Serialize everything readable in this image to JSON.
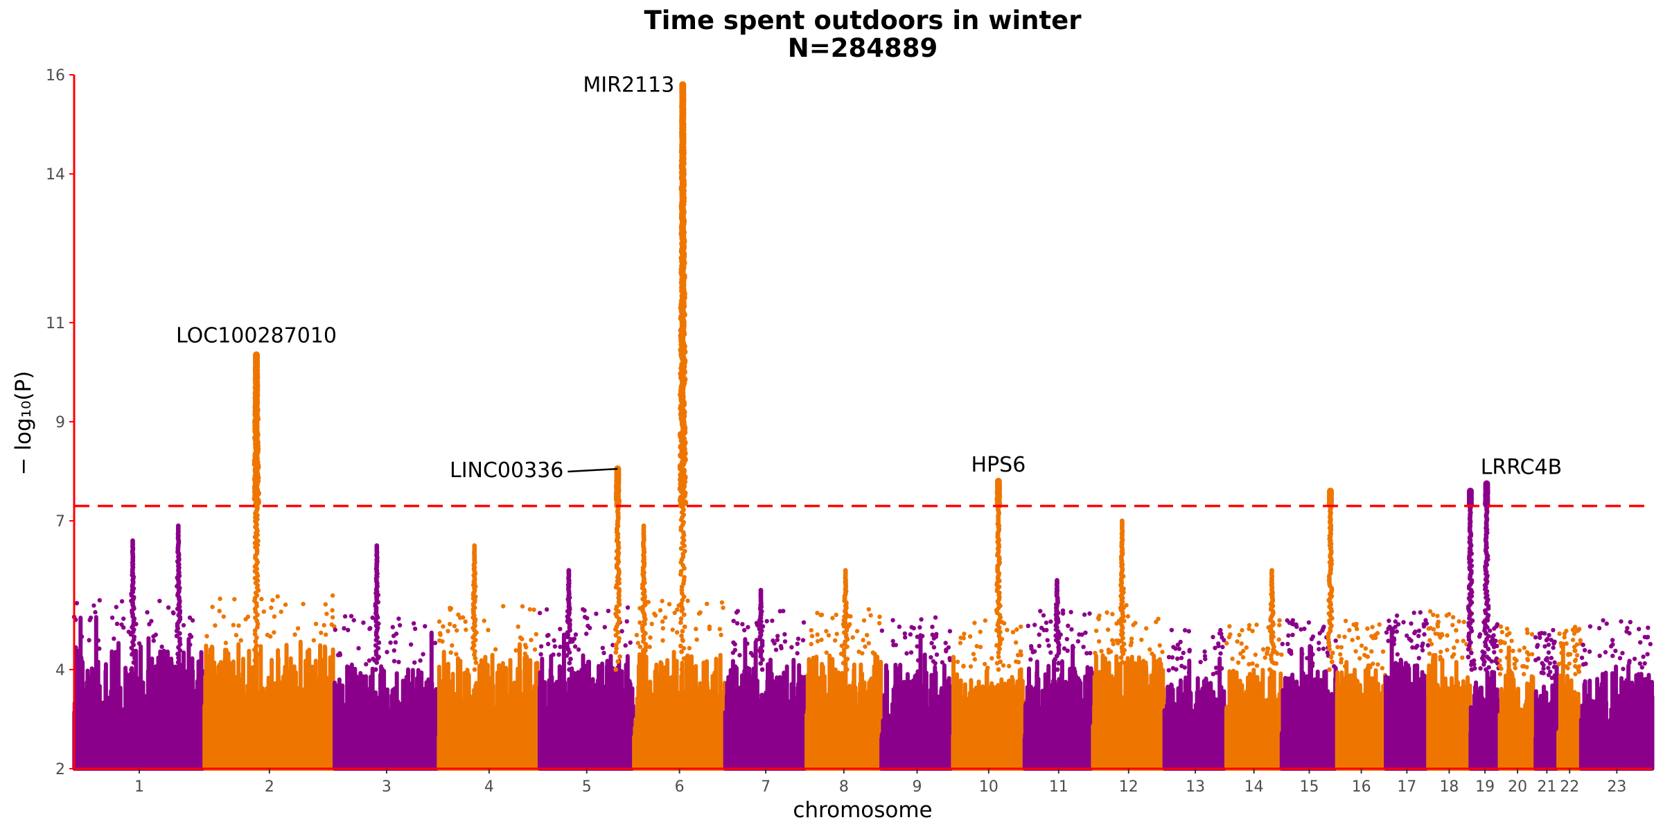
{
  "chart_data": {
    "type": "scatter",
    "title": "Time spent outdoors in winter",
    "subtitle": "N=284889",
    "xlabel": "chromosome",
    "ylabel": "− log₁₀(P)",
    "ylim": [
      2,
      16
    ],
    "yticks": [
      2,
      4,
      7,
      9,
      11,
      14,
      16
    ],
    "significance_threshold": 7.3,
    "colors": {
      "odd": "#8b008b",
      "even": "#ee7600",
      "threshold": "#ff0000",
      "axis": "#ff0000"
    },
    "chromosomes": [
      {
        "label": "1",
        "start": 0.0,
        "end": 4.0,
        "base_max": 4.4,
        "color": "odd"
      },
      {
        "label": "2",
        "start": 4.0,
        "end": 8.0,
        "base_max": 4.5,
        "color": "even"
      },
      {
        "label": "3",
        "start": 8.0,
        "end": 11.2,
        "base_max": 4.1,
        "color": "odd"
      },
      {
        "label": "4",
        "start": 11.2,
        "end": 14.3,
        "base_max": 4.3,
        "color": "even"
      },
      {
        "label": "5",
        "start": 14.3,
        "end": 17.2,
        "base_max": 4.3,
        "color": "odd"
      },
      {
        "label": "6",
        "start": 17.2,
        "end": 20.0,
        "base_max": 4.4,
        "color": "even"
      },
      {
        "label": "7",
        "start": 20.0,
        "end": 22.5,
        "base_max": 4.2,
        "color": "odd"
      },
      {
        "label": "8",
        "start": 22.5,
        "end": 24.8,
        "base_max": 4.3,
        "color": "even"
      },
      {
        "label": "9",
        "start": 24.8,
        "end": 27.0,
        "base_max": 4.1,
        "color": "odd"
      },
      {
        "label": "10",
        "start": 27.0,
        "end": 29.2,
        "base_max": 4.0,
        "color": "even"
      },
      {
        "label": "11",
        "start": 29.2,
        "end": 31.3,
        "base_max": 4.2,
        "color": "odd"
      },
      {
        "label": "12",
        "start": 31.3,
        "end": 33.5,
        "base_max": 4.3,
        "color": "even"
      },
      {
        "label": "13",
        "start": 33.5,
        "end": 35.4,
        "base_max": 3.9,
        "color": "odd"
      },
      {
        "label": "14",
        "start": 35.4,
        "end": 37.1,
        "base_max": 4.0,
        "color": "even"
      },
      {
        "label": "15",
        "start": 37.1,
        "end": 38.8,
        "base_max": 4.0,
        "color": "odd"
      },
      {
        "label": "16",
        "start": 38.8,
        "end": 40.3,
        "base_max": 4.0,
        "color": "even"
      },
      {
        "label": "17",
        "start": 40.3,
        "end": 41.6,
        "base_max": 4.2,
        "color": "odd"
      },
      {
        "label": "18",
        "start": 41.6,
        "end": 42.9,
        "base_max": 4.2,
        "color": "even"
      },
      {
        "label": "19",
        "start": 42.9,
        "end": 43.8,
        "base_max": 4.0,
        "color": "odd"
      },
      {
        "label": "20",
        "start": 43.8,
        "end": 44.9,
        "base_max": 3.9,
        "color": "even"
      },
      {
        "label": "21",
        "start": 44.9,
        "end": 45.6,
        "base_max": 3.8,
        "color": "odd"
      },
      {
        "label": "22",
        "start": 45.6,
        "end": 46.3,
        "base_max": 3.9,
        "color": "even"
      },
      {
        "label": "23",
        "start": 46.3,
        "end": 48.5,
        "base_max": 4.0,
        "color": "odd"
      }
    ],
    "peaks": [
      {
        "pos": 1.8,
        "top": 6.6,
        "color": "odd"
      },
      {
        "pos": 3.2,
        "top": 6.9,
        "color": "odd"
      },
      {
        "pos": 5.6,
        "top": 10.35,
        "color": "even"
      },
      {
        "pos": 9.3,
        "top": 6.5,
        "color": "odd"
      },
      {
        "pos": 12.3,
        "top": 6.5,
        "color": "even"
      },
      {
        "pos": 15.2,
        "top": 6.0,
        "color": "odd"
      },
      {
        "pos": 16.7,
        "top": 8.05,
        "color": "even"
      },
      {
        "pos": 17.5,
        "top": 6.9,
        "color": "even"
      },
      {
        "pos": 18.7,
        "top": 15.8,
        "color": "even"
      },
      {
        "pos": 21.1,
        "top": 5.6,
        "color": "odd"
      },
      {
        "pos": 23.7,
        "top": 6.0,
        "color": "even"
      },
      {
        "pos": 28.4,
        "top": 7.8,
        "color": "even"
      },
      {
        "pos": 30.2,
        "top": 5.8,
        "color": "odd"
      },
      {
        "pos": 32.2,
        "top": 7.0,
        "color": "even"
      },
      {
        "pos": 36.8,
        "top": 6.0,
        "color": "even"
      },
      {
        "pos": 38.6,
        "top": 7.6,
        "color": "even"
      },
      {
        "pos": 43.4,
        "top": 7.75,
        "color": "odd"
      },
      {
        "pos": 42.9,
        "top": 7.6,
        "color": "odd"
      }
    ],
    "annotations": [
      {
        "text": "LOC100287010",
        "pos": 5.6,
        "y": 10.35
      },
      {
        "text": "MIR2113",
        "pos": 18.7,
        "y": 15.8
      },
      {
        "text": "LINC00336",
        "pos": 16.7,
        "y": 8.05
      },
      {
        "text": "HPS6",
        "pos": 28.4,
        "y": 7.8
      },
      {
        "text": "LRRC4B",
        "pos": 43.4,
        "y": 7.75
      }
    ]
  }
}
